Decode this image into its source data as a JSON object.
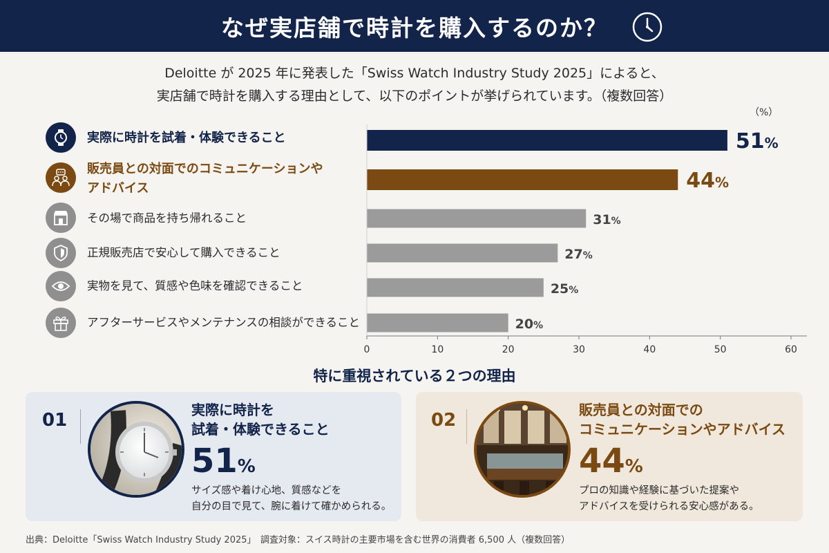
{
  "header": {
    "title": "なぜ実店舗で時計を購入するのか？"
  },
  "intro": {
    "line1": "Deloitte が 2025 年に発表した「Swiss Watch Industry Study 2025」によると、",
    "line2": "実店舗で時計を購入する理由として、以下のポイントが挙げられています。（複数回答）"
  },
  "chart_data": {
    "type": "bar",
    "orientation": "horizontal",
    "unit_label": "（%）",
    "categories": [
      "実際に時計を試着・体験できること",
      "販売員との対面でのコミュニケーションやアドバイス",
      "その場で商品を持ち帰れること",
      "正規販売店で安心して購入できること",
      "実物を見て、質感や色味を確認できること",
      "アフターサービスやメンテナンスの相談ができること"
    ],
    "label_lines": [
      [
        "実際に時計を試着・体験できること"
      ],
      [
        "販売員との対面でのコミュニケーションや",
        "アドバイス"
      ],
      [
        "その場で商品を持ち帰れること"
      ],
      [
        "正規販売店で安心して購入できること"
      ],
      [
        "実物を見て、質感や色味を確認できること"
      ],
      [
        "アフターサービスやメンテナンスの相談ができること"
      ]
    ],
    "values": [
      51,
      44,
      31,
      27,
      25,
      20
    ],
    "value_suffix": "%",
    "xlim": [
      0,
      60
    ],
    "xticks": [
      0,
      10,
      20,
      30,
      40,
      50,
      60
    ],
    "icons": [
      "watch-icon",
      "people-chat-icon",
      "store-icon",
      "shield-icon",
      "eye-icon",
      "gift-icon"
    ],
    "colors": [
      "#13244a",
      "#7b4a12",
      "#9b9b9b",
      "#9b9b9b",
      "#9b9b9b",
      "#9b9b9b"
    ],
    "grid": false
  },
  "section": {
    "title": "特に重視されている２つの理由"
  },
  "cards": [
    {
      "number": "01",
      "title_line1": "実際に時計を",
      "title_line2": "試着・体験できること",
      "pct": "51",
      "pct_suffix": "%",
      "desc_line1": "サイズ感や着け心地、質感などを",
      "desc_line2": "自分の目で見て、腕に着けて確かめられる。",
      "color": "#13244a"
    },
    {
      "number": "02",
      "title_line1": "販売員との対面での",
      "title_line2": "コミュニケーションやアドバイス",
      "pct": "44",
      "pct_suffix": "%",
      "desc_line1": "プロの知識や経験に基づいた提案や",
      "desc_line2": "アドバイスを受けられる安心感がある。",
      "color": "#7b4a12"
    }
  ],
  "footer": {
    "source": "出典：Deloitte「Swiss Watch Industry Study 2025」　調査対象：スイス時計の主要市場を含む世界の消費者 6,500 人（複数回答）"
  }
}
